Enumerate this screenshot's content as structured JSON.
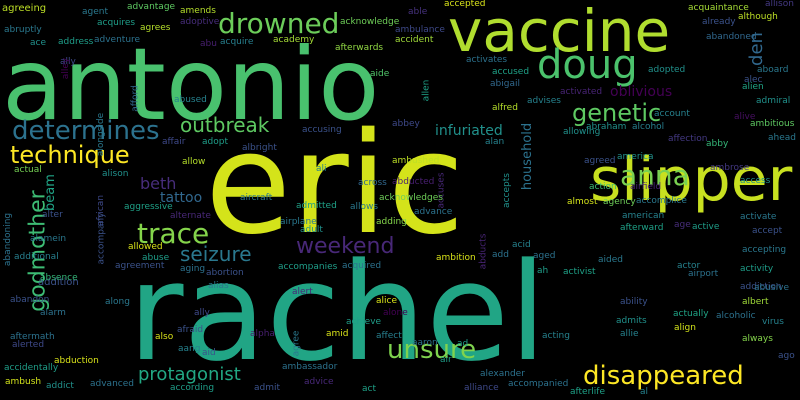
{
  "words": [
    {
      "text": "eric",
      "color": "#d4e31a"
    },
    {
      "text": "rachel",
      "color": "#21a585"
    },
    {
      "text": "antonio",
      "color": "#49c16e"
    },
    {
      "text": "vaccine",
      "color": "#b0dd2f"
    },
    {
      "text": "slipper",
      "color": "#c8e020"
    },
    {
      "text": "drowned",
      "color": "#6ccd5a"
    },
    {
      "text": "doug",
      "color": "#4bc26c"
    },
    {
      "text": "determines",
      "color": "#2c728e"
    },
    {
      "text": "genetic",
      "color": "#5ec962"
    },
    {
      "text": "anna",
      "color": "#79d151"
    },
    {
      "text": "technique",
      "color": "#fde725"
    },
    {
      "text": "outbreak",
      "color": "#5ec962"
    },
    {
      "text": "trace",
      "color": "#84d44b"
    },
    {
      "text": "weekend",
      "color": "#482878"
    },
    {
      "text": "seizure",
      "color": "#2a788e"
    },
    {
      "text": "godmother",
      "color": "#3dbc74"
    },
    {
      "text": "unsure",
      "color": "#7fd34e"
    },
    {
      "text": "protagonist",
      "color": "#22a884"
    },
    {
      "text": "disappeared",
      "color": "#fde725"
    },
    {
      "text": "oblivious",
      "color": "#440154"
    },
    {
      "text": "infuriated",
      "color": "#21918c"
    },
    {
      "text": "tattoo",
      "color": "#31688e"
    },
    {
      "text": "beth",
      "color": "#472d7b"
    },
    {
      "text": "household",
      "color": "#2c728e"
    },
    {
      "text": "den",
      "color": "#31688e"
    },
    {
      "text": "beam",
      "color": "#20a486"
    },
    {
      "text": "addition",
      "color": "#3b528b"
    },
    {
      "text": "agreeing",
      "color": "#bddf26"
    },
    {
      "text": "agent",
      "color": "#2a788e"
    },
    {
      "text": "advantage",
      "color": "#5ec962"
    },
    {
      "text": "amends",
      "color": "#b5de2b"
    },
    {
      "text": "able",
      "color": "#46327e"
    },
    {
      "text": "accepted",
      "color": "#d8e219"
    },
    {
      "text": "acquaintance",
      "color": "#a5db36"
    },
    {
      "text": "allison",
      "color": "#443983"
    },
    {
      "text": "abruptly",
      "color": "#2a788e"
    },
    {
      "text": "acquires",
      "color": "#1f9e89"
    },
    {
      "text": "agrees",
      "color": "#b5de2b"
    },
    {
      "text": "adoptive",
      "color": "#472d7b"
    },
    {
      "text": "acknowledge",
      "color": "#6ece58"
    },
    {
      "text": "ambulance",
      "color": "#3e4989"
    },
    {
      "text": "already",
      "color": "#3b528b"
    },
    {
      "text": "although",
      "color": "#bddf26"
    },
    {
      "text": "ace",
      "color": "#21918c"
    },
    {
      "text": "address",
      "color": "#1f9e89"
    },
    {
      "text": "adventure",
      "color": "#2c728e"
    },
    {
      "text": "abu",
      "color": "#481f70"
    },
    {
      "text": "acquire",
      "color": "#277f8e"
    },
    {
      "text": "academy",
      "color": "#a5db36"
    },
    {
      "text": "accident",
      "color": "#a0da39"
    },
    {
      "text": "abandoned",
      "color": "#31688e"
    },
    {
      "text": "ally",
      "color": "#3e4989"
    },
    {
      "text": "afterwards",
      "color": "#90d743"
    },
    {
      "text": "activates",
      "color": "#2c728e"
    },
    {
      "text": "aboard",
      "color": "#2a788e"
    },
    {
      "text": "alley",
      "color": "#440154"
    },
    {
      "text": "afford",
      "color": "#31688e"
    },
    {
      "text": "aide",
      "color": "#50c46a"
    },
    {
      "text": "allen",
      "color": "#1fa187"
    },
    {
      "text": "accused",
      "color": "#1fa187"
    },
    {
      "text": "adopted",
      "color": "#21918c"
    },
    {
      "text": "alien",
      "color": "#20a486"
    },
    {
      "text": "alec",
      "color": "#3b528b"
    },
    {
      "text": "abused",
      "color": "#26828e"
    },
    {
      "text": "abigail",
      "color": "#31688e"
    },
    {
      "text": "activated",
      "color": "#482475"
    },
    {
      "text": "advises",
      "color": "#26828e"
    },
    {
      "text": "admiral",
      "color": "#21918c"
    },
    {
      "text": "ambitious",
      "color": "#5ec962"
    },
    {
      "text": "alongside",
      "color": "#2a788e"
    },
    {
      "text": "alfred",
      "color": "#b5de2b"
    },
    {
      "text": "account",
      "color": "#26828e"
    },
    {
      "text": "alive",
      "color": "#470f62"
    },
    {
      "text": "abby",
      "color": "#35b779"
    },
    {
      "text": "ahead",
      "color": "#2a788e"
    },
    {
      "text": "accusing",
      "color": "#3b528b"
    },
    {
      "text": "abbey",
      "color": "#3e4989"
    },
    {
      "text": "allowing",
      "color": "#21918c"
    },
    {
      "text": "abraham",
      "color": "#21918c"
    },
    {
      "text": "alcohol",
      "color": "#277f8e"
    },
    {
      "text": "alan",
      "color": "#26828e"
    },
    {
      "text": "affection",
      "color": "#443983"
    },
    {
      "text": "affair",
      "color": "#3e4989"
    },
    {
      "text": "adopt",
      "color": "#1f9e89"
    },
    {
      "text": "albright",
      "color": "#3b528b"
    },
    {
      "text": "allow",
      "color": "#b5de2b"
    },
    {
      "text": "ambushed",
      "color": "#bddf26"
    },
    {
      "text": "agreed",
      "color": "#3b528b"
    },
    {
      "text": "america",
      "color": "#21918c"
    },
    {
      "text": "ambrose",
      "color": "#443983"
    },
    {
      "text": "actual",
      "color": "#75d054"
    },
    {
      "text": "alison",
      "color": "#21918c"
    },
    {
      "text": "ali",
      "color": "#26828e"
    },
    {
      "text": "across",
      "color": "#31688e"
    },
    {
      "text": "abducted",
      "color": "#481f70"
    },
    {
      "text": "accuses",
      "color": "#482878"
    },
    {
      "text": "accepts",
      "color": "#21918c"
    },
    {
      "text": "action",
      "color": "#3dbc74"
    },
    {
      "text": "airfield",
      "color": "#482475"
    },
    {
      "text": "access",
      "color": "#21918c"
    },
    {
      "text": "african",
      "color": "#3e4989"
    },
    {
      "text": "accompany",
      "color": "#3b528b"
    },
    {
      "text": "aggressive",
      "color": "#1fa187"
    },
    {
      "text": "aircraft",
      "color": "#2a788e"
    },
    {
      "text": "admitted",
      "color": "#1fa187"
    },
    {
      "text": "allows",
      "color": "#2a788e"
    },
    {
      "text": "acknowledges",
      "color": "#6ece58"
    },
    {
      "text": "almost",
      "color": "#d2e21b"
    },
    {
      "text": "agency",
      "color": "#6ece58"
    },
    {
      "text": "accomplice",
      "color": "#2a788e"
    },
    {
      "text": "afterward",
      "color": "#1fa187"
    },
    {
      "text": "activate",
      "color": "#2a788e"
    },
    {
      "text": "alter",
      "color": "#3b528b"
    },
    {
      "text": "alternate",
      "color": "#482878"
    },
    {
      "text": "advance",
      "color": "#2c728e"
    },
    {
      "text": "american",
      "color": "#26828e"
    },
    {
      "text": "age",
      "color": "#472d7b"
    },
    {
      "text": "active",
      "color": "#1f9e89"
    },
    {
      "text": "accept",
      "color": "#3b528b"
    },
    {
      "text": "abandoning",
      "color": "#2c728e"
    },
    {
      "text": "alamein",
      "color": "#2a788e"
    },
    {
      "text": "adult",
      "color": "#21918c"
    },
    {
      "text": "adding",
      "color": "#84d44b"
    },
    {
      "text": "abducts",
      "color": "#482475"
    },
    {
      "text": "acid",
      "color": "#26828e"
    },
    {
      "text": "accepting",
      "color": "#2a788e"
    },
    {
      "text": "allowed",
      "color": "#d8e219"
    },
    {
      "text": "agreement",
      "color": "#3b528b"
    },
    {
      "text": "abuse",
      "color": "#1f9e89"
    },
    {
      "text": "additional",
      "color": "#277f8e"
    },
    {
      "text": "ambition",
      "color": "#d8e219"
    },
    {
      "text": "add",
      "color": "#2c728e"
    },
    {
      "text": "aged",
      "color": "#2c728e"
    },
    {
      "text": "aided",
      "color": "#2a788e"
    },
    {
      "text": "actor",
      "color": "#26828e"
    },
    {
      "text": "airport",
      "color": "#2c728e"
    },
    {
      "text": "activity",
      "color": "#1f9e89"
    },
    {
      "text": "absence",
      "color": "#35b779"
    },
    {
      "text": "aging",
      "color": "#2c728e"
    },
    {
      "text": "abortion",
      "color": "#3b528b"
    },
    {
      "text": "accompanies",
      "color": "#1f9e89"
    },
    {
      "text": "acquired",
      "color": "#2c728e"
    },
    {
      "text": "ah",
      "color": "#1f9e89"
    },
    {
      "text": "activist",
      "color": "#1fa187"
    },
    {
      "text": "addiction",
      "color": "#3b528b"
    },
    {
      "text": "abusive",
      "color": "#2c728e"
    },
    {
      "text": "alias",
      "color": "#2a788e"
    },
    {
      "text": "alert",
      "color": "#482878"
    },
    {
      "text": "abandon",
      "color": "#3b528b"
    },
    {
      "text": "along",
      "color": "#2a788e"
    },
    {
      "text": "alice",
      "color": "#d8e219"
    },
    {
      "text": "ability",
      "color": "#3b528b"
    },
    {
      "text": "albert",
      "color": "#a0da39"
    },
    {
      "text": "alarm",
      "color": "#2c728e"
    },
    {
      "text": "ally",
      "color": "#3e4989"
    },
    {
      "text": "alone",
      "color": "#440154"
    },
    {
      "text": "admits",
      "color": "#21918c"
    },
    {
      "text": "actually",
      "color": "#20a486"
    },
    {
      "text": "alcoholic",
      "color": "#2c728e"
    },
    {
      "text": "virus",
      "color": "#26828e"
    },
    {
      "text": "achieve",
      "color": "#1f9e89"
    },
    {
      "text": "align",
      "color": "#d2e21b"
    },
    {
      "text": "aftermath",
      "color": "#2c728e"
    },
    {
      "text": "afraid",
      "color": "#3b528b"
    },
    {
      "text": "alpha",
      "color": "#481f70"
    },
    {
      "text": "affect",
      "color": "#277f8e"
    },
    {
      "text": "allie",
      "color": "#26828e"
    },
    {
      "text": "always",
      "color": "#84d44b"
    },
    {
      "text": "alerted",
      "color": "#3e4989"
    },
    {
      "text": "also",
      "color": "#d8e219"
    },
    {
      "text": "aang",
      "color": "#26828e"
    },
    {
      "text": "aid",
      "color": "#3b528b"
    },
    {
      "text": "agree",
      "color": "#2a788e"
    },
    {
      "text": "amid",
      "color": "#d8e219"
    },
    {
      "text": "aaron",
      "color": "#2c728e"
    },
    {
      "text": "ad",
      "color": "#1f9e89"
    },
    {
      "text": "acting",
      "color": "#26828e"
    },
    {
      "text": "ago",
      "color": "#3b528b"
    },
    {
      "text": "abduction",
      "color": "#d8e219"
    },
    {
      "text": "accidentally",
      "color": "#1f9e89"
    },
    {
      "text": "ambassador",
      "color": "#2c728e"
    },
    {
      "text": "air",
      "color": "#1f9e89"
    },
    {
      "text": "alexander",
      "color": "#2c728e"
    },
    {
      "text": "ambush",
      "color": "#d2e21b"
    },
    {
      "text": "addict",
      "color": "#21918c"
    },
    {
      "text": "advanced",
      "color": "#2c728e"
    },
    {
      "text": "according",
      "color": "#1f9e89"
    },
    {
      "text": "admit",
      "color": "#3b528b"
    },
    {
      "text": "advice",
      "color": "#482878"
    },
    {
      "text": "act",
      "color": "#1fa187"
    },
    {
      "text": "alliance",
      "color": "#3e4989"
    },
    {
      "text": "accompanied",
      "color": "#2c728e"
    },
    {
      "text": "afterlife",
      "color": "#1fa187"
    },
    {
      "text": "al",
      "color": "#26828e"
    },
    {
      "text": "airplane",
      "color": "#2a788e"
    }
  ]
}
